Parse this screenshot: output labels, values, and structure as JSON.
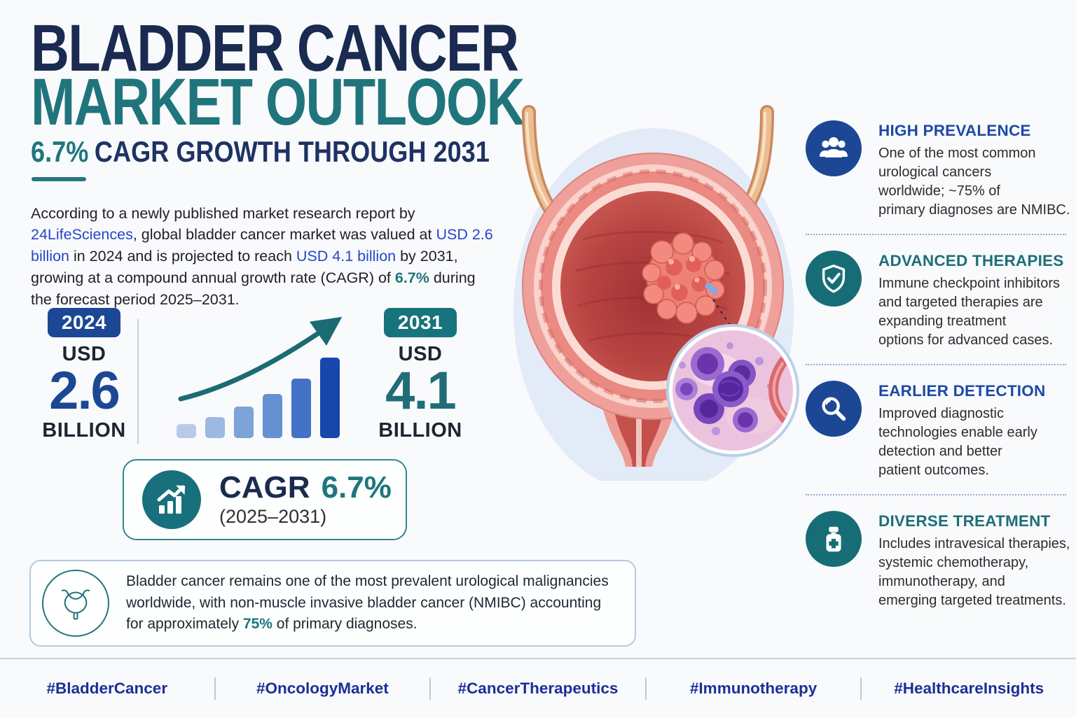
{
  "header": {
    "title_line1": "BLADDER CANCER",
    "title_line2": "MARKET OUTLOOK",
    "subtitle_highlight": "6.7%",
    "subtitle_rest": "CAGR GROWTH THROUGH 2031"
  },
  "intro": {
    "seg1": "According to a newly published market research report by ",
    "link": "24LifeSciences",
    "seg2": ", global bladder cancer market was valued at ",
    "value_2024": "USD 2.6 billion",
    "seg3": " in 2024 and is projected to reach ",
    "value_2031": "USD 4.1 billion",
    "seg4": " by 2031, growing at a compound annual growth rate (CAGR) of ",
    "cagr": "6.7%",
    "seg5": " during the forecast period 2025–2031."
  },
  "stats": {
    "start": {
      "year": "2024",
      "currency": "USD",
      "value": "2.6",
      "unit": "BILLION"
    },
    "end": {
      "year": "2031",
      "currency": "USD",
      "value": "4.1",
      "unit": "BILLION"
    }
  },
  "cagr_box": {
    "label": "CAGR",
    "value": "6.7%",
    "period": "(2025–2031)"
  },
  "chart_data": {
    "type": "bar",
    "title": "Decorative market growth bars from USD 2.6 billion (2024) to USD 4.1 billion (2031)",
    "values": [
      20,
      30,
      45,
      63,
      85,
      115
    ],
    "unit": "relative height (px), axes unlabeled",
    "colors": [
      "#b7cbe9",
      "#9db9e3",
      "#7da3d9",
      "#6591d1",
      "#4472c6",
      "#1746ad"
    ],
    "trend_arrow_color": "#1a6b74",
    "from_label": "USD 2.6 BILLION (2024)",
    "to_label": "USD 4.1 BILLION (2031)"
  },
  "note": {
    "seg1": "Bladder cancer remains one of the most prevalent urological malignancies worldwide, with non-muscle invasive bladder cancer (NMIBC) accounting for approximately ",
    "highlight": "75%",
    "seg2": " of primary diagnoses."
  },
  "highlights": [
    {
      "icon": "people-group-icon",
      "accent": "#1d49a6",
      "icon_color": "#1c4795",
      "title": "HIGH PREVALENCE",
      "body": "One of the most common\nurological cancers\nworldwide; ~75% of\nprimary diagnoses are NMIBC."
    },
    {
      "icon": "shield-check-icon",
      "accent": "#1d6f78",
      "icon_color": "#176d76",
      "title": "ADVANCED THERAPIES",
      "body": "Immune checkpoint inhibitors\nand targeted therapies are\nexpanding treatment\noptions for advanced cases."
    },
    {
      "icon": "magnifier-icon",
      "accent": "#1d49a6",
      "icon_color": "#1c4795",
      "title": "EARLIER DETECTION",
      "body": "Improved diagnostic\ntechnologies enable early\ndetection and better\npatient outcomes."
    },
    {
      "icon": "medicine-bottle-icon",
      "accent": "#1d6f78",
      "icon_color": "#176d76",
      "title": "DIVERSE TREATMENT",
      "body": "Includes intravesical therapies,\nsystemic chemotherapy,\nimmunotherapy, and\nemerging targeted treatments."
    }
  ],
  "hashtags": [
    "#BladderCancer",
    "#OncologyMarket",
    "#CancerTherapeutics",
    "#Immunotherapy",
    "#HealthcareInsights"
  ],
  "colors": {
    "navy": "#1b2a50",
    "teal": "#20757c",
    "link_blue": "#2447c8",
    "badge_blue": "#1c4795",
    "badge_teal": "#17737c",
    "hashtag_blue": "#1c2f96"
  }
}
